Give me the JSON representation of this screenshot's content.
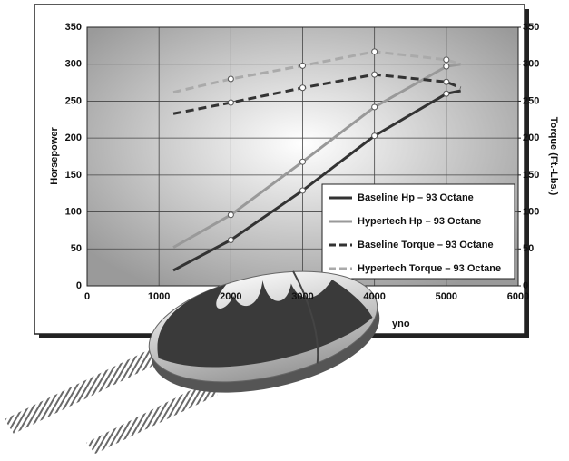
{
  "chart_data": {
    "type": "line",
    "y_label": "Horsepower",
    "y2_label": "Torque (Ft.-Lbs.)",
    "x_label": "yno",
    "xlim": [
      0,
      6000
    ],
    "xticks": [
      0,
      1000,
      2000,
      3000,
      4000,
      5000,
      6000
    ],
    "ylim": [
      0,
      350
    ],
    "yticks": [
      0,
      50,
      100,
      150,
      200,
      250,
      300,
      350
    ],
    "y2lim": [
      0,
      350
    ],
    "y2ticks": [
      0,
      50,
      100,
      150,
      200,
      250,
      300,
      350
    ],
    "grid": true,
    "legend": "lower right",
    "x": [
      1200,
      2000,
      3000,
      4000,
      5000,
      5200
    ],
    "series": [
      {
        "name": "Baseline Hp – 93 Octane",
        "color": "#333333",
        "dashed": false,
        "values": [
          21,
          62,
          129,
          203,
          260,
          264
        ]
      },
      {
        "name": "Hypertech Hp – 93 Octane",
        "color": "#999999",
        "dashed": false,
        "values": [
          52,
          96,
          168,
          242,
          297,
          300
        ]
      },
      {
        "name": "Baseline Torque – 93 Octane",
        "color": "#333333",
        "dashed": true,
        "axis": "y2",
        "values": [
          233,
          248,
          268,
          286,
          276,
          268
        ]
      },
      {
        "name": "Hypertech Torque – 93 Octane",
        "color": "#aaaaaa",
        "dashed": true,
        "axis": "y2",
        "values": [
          262,
          280,
          298,
          317,
          306,
          300
        ]
      }
    ]
  }
}
